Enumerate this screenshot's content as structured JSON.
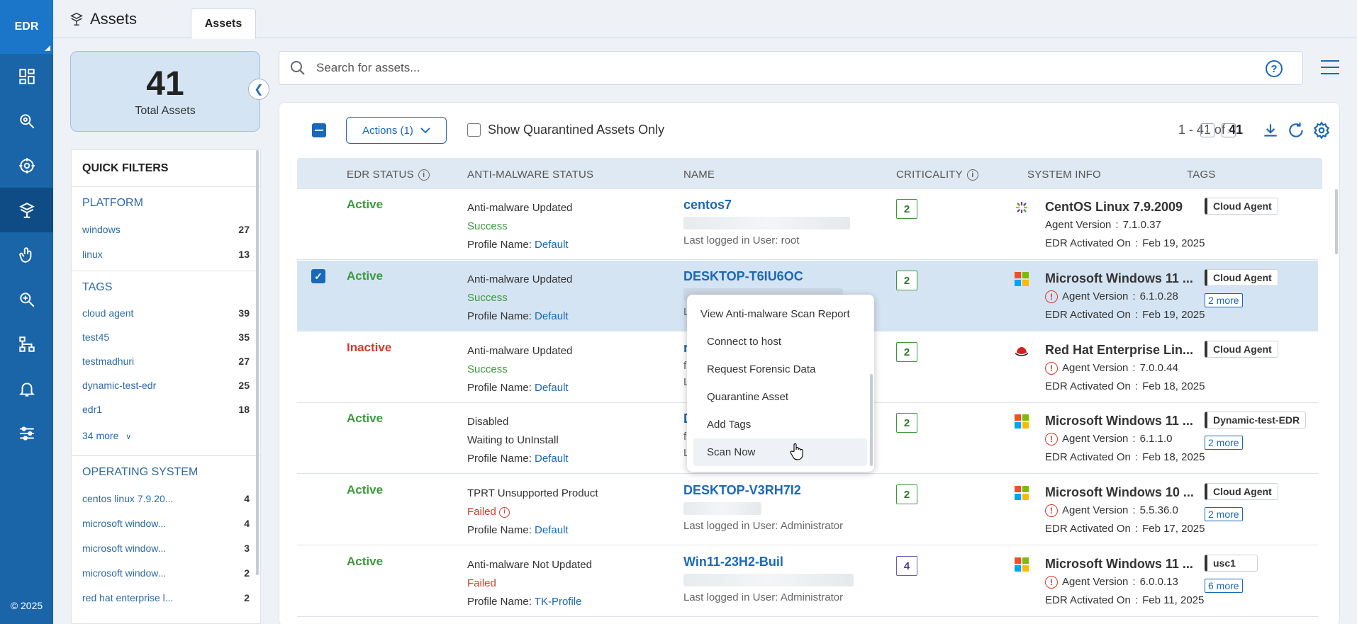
{
  "nav": {
    "logo": "EDR",
    "copyright": "© 2025",
    "items": [
      {
        "icon": "dashboard-icon"
      },
      {
        "icon": "hunting-icon"
      },
      {
        "icon": "threat-icon"
      },
      {
        "icon": "assets-icon",
        "active": true
      },
      {
        "icon": "response-icon"
      },
      {
        "icon": "investigate-icon"
      },
      {
        "icon": "policy-icon"
      },
      {
        "icon": "alerts-icon"
      },
      {
        "icon": "settings-icon"
      }
    ]
  },
  "header": {
    "title": "Assets",
    "tab": "Assets"
  },
  "summary": {
    "count": "41",
    "label": "Total Assets"
  },
  "quick_filters": {
    "title": "QUICK FILTERS",
    "platform": {
      "title": "PLATFORM",
      "items": [
        {
          "label": "windows",
          "count": "27"
        },
        {
          "label": "linux",
          "count": "13"
        }
      ]
    },
    "tags": {
      "title": "TAGS",
      "items": [
        {
          "label": "cloud agent",
          "count": "39"
        },
        {
          "label": "test45",
          "count": "35"
        },
        {
          "label": "testmadhuri",
          "count": "27"
        },
        {
          "label": "dynamic-test-edr",
          "count": "25"
        },
        {
          "label": "edr1",
          "count": "18"
        }
      ],
      "more": "34 more"
    },
    "os": {
      "title": "OPERATING SYSTEM",
      "items": [
        {
          "label": "centos linux 7.9.20...",
          "count": "4"
        },
        {
          "label": "microsoft window...",
          "count": "4"
        },
        {
          "label": "microsoft window...",
          "count": "3"
        },
        {
          "label": "microsoft window...",
          "count": "2"
        },
        {
          "label": "red hat enterprise l...",
          "count": "2"
        }
      ]
    }
  },
  "search": {
    "placeholder": "Search for assets..."
  },
  "toolbar": {
    "actions_label": "Actions (1)",
    "quarantine_label": "Show Quarantined Assets Only",
    "pager_range": "1 - 41 of",
    "pager_total": "41"
  },
  "columns": {
    "edr_status": "EDR STATUS",
    "anti_malware": "ANTI-MALWARE STATUS",
    "name": "NAME",
    "criticality": "CRITICALITY",
    "system_info": "SYSTEM INFO",
    "tags": "TAGS"
  },
  "labels": {
    "profile_name": "Profile Name",
    "last_user": "Last logged in User",
    "agent_version": "Agent Version",
    "activated_on": "EDR Activated On"
  },
  "rows": [
    {
      "status": "Active",
      "am1": "Anti-malware Updated",
      "am2": "Success",
      "profile": "Default",
      "name": "centos7",
      "user": "root",
      "criticality": "2",
      "os": "CentOS Linux 7.9.2009",
      "agent": "7.1.0.37",
      "activated": "Feb 19, 2025",
      "tag": "Cloud Agent",
      "more": ""
    },
    {
      "status": "Active",
      "am1": "Anti-malware Updated",
      "am2": "Success",
      "profile": "Default",
      "name": "DESKTOP-T6IU6OC",
      "user": "",
      "criticality": "2",
      "os": "Microsoft Windows 11 ...",
      "agent": "6.1.0.28",
      "activated": "Feb 19, 2025",
      "tag": "Cloud Agent",
      "more": "2 more"
    },
    {
      "status": "Inactive",
      "am1": "Anti-malware Updated",
      "am2": "Success",
      "profile": "Default",
      "name": "",
      "user": "",
      "criticality": "2",
      "os": "Red Hat Enterprise Lin...",
      "agent": "7.0.0.44",
      "activated": "Feb 18, 2025",
      "tag": "Cloud Agent",
      "more": ""
    },
    {
      "status": "Active",
      "am1": "Disabled",
      "am2": "Waiting to UnInstall",
      "profile": "Default",
      "name": "",
      "user": "",
      "criticality": "2",
      "os": "Microsoft Windows 11 ...",
      "agent": "6.1.1.0",
      "activated": "Feb 18, 2025",
      "tag": "Dynamic-test-EDR",
      "more": "2 more"
    },
    {
      "status": "Active",
      "am1": "TPRT Unsupported Product",
      "am2": "Failed",
      "profile": "Default",
      "name": "DESKTOP-V3RH7I2",
      "user": "Administrator",
      "criticality": "2",
      "os": "Microsoft Windows 10 ...",
      "agent": "5.5.36.0",
      "activated": "Feb 17, 2025",
      "tag": "Cloud Agent",
      "more": "2 more"
    },
    {
      "status": "Active",
      "am1": "Anti-malware Not Updated",
      "am2": "Failed",
      "profile": "TK-Profile",
      "name": "Win11-23H2-Buil",
      "user": "Administrator",
      "criticality": "4",
      "os": "Microsoft Windows 11 ...",
      "agent": "6.0.0.13",
      "activated": "Feb 11, 2025",
      "tag": "usc1",
      "more": "6 more"
    }
  ],
  "context_menu": {
    "items": [
      "View Anti-malware Scan Report",
      "Connect to host",
      "Request Forensic Data",
      "Quarantine Asset",
      "Add Tags",
      "Scan Now"
    ]
  },
  "colors": {
    "nav": "#1a64a8",
    "accent": "#1a68b8",
    "active": "#3a9a3a",
    "inactive": "#d43a2a"
  }
}
